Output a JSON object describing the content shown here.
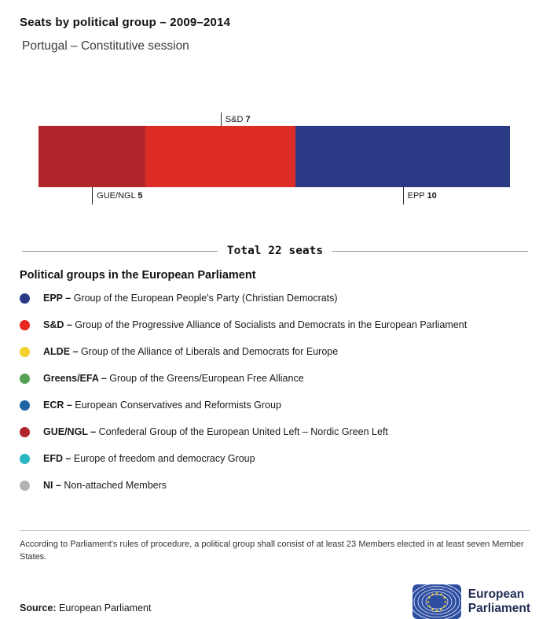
{
  "header": {
    "title": "Seats by political group – 2009–2014",
    "subtitle": "Portugal – Constitutive session"
  },
  "chart_data": {
    "type": "bar",
    "stacked": true,
    "orientation": "horizontal",
    "title": "Seats by political group – 2009–2014",
    "subtitle": "Portugal – Constitutive session",
    "total": 22,
    "total_label": "Total 22 seats",
    "categories": [
      "GUE/NGL",
      "S&D",
      "EPP"
    ],
    "values": [
      5,
      7,
      10
    ],
    "segments": [
      {
        "group": "GUE/NGL",
        "seats": 5,
        "color": "#b2242c",
        "label_position": "below"
      },
      {
        "group": "S&D",
        "seats": 7,
        "color": "#dd2b26",
        "label_position": "above"
      },
      {
        "group": "EPP",
        "seats": 10,
        "color": "#2b3a85",
        "label_position": "below"
      }
    ]
  },
  "legend": {
    "title": "Political groups in the European Parliament",
    "items": [
      {
        "abbr": "EPP",
        "name": "Group of the European People's Party (Christian Democrats)",
        "color": "#2b3a85"
      },
      {
        "abbr": "S&D",
        "name": "Group of the Progressive Alliance of Socialists and Democrats in the European Parliament",
        "color": "#e8251f"
      },
      {
        "abbr": "ALDE",
        "name": "Group of the Alliance of Liberals and Democrats for Europe",
        "color": "#f0d32f"
      },
      {
        "abbr": "Greens/EFA",
        "name": "Group of the Greens/European Free Alliance",
        "color": "#55a057"
      },
      {
        "abbr": "ECR",
        "name": "European Conservatives and Reformists Group",
        "color": "#1e64a5"
      },
      {
        "abbr": "GUE/NGL",
        "name": "Confederal Group of the European United Left – Nordic Green Left",
        "color": "#b0252b"
      },
      {
        "abbr": "EFD",
        "name": "Europe of freedom and democracy Group",
        "color": "#28b6c0"
      },
      {
        "abbr": "NI",
        "name": "Non-attached Members",
        "color": "#b2b2b2"
      }
    ]
  },
  "footnote": "According to Parliament's rules of procedure, a political group shall consist of at least 23 Members elected in at least seven Member States.",
  "source": {
    "label": "Source:",
    "text": "European Parliament"
  },
  "logo": {
    "line1": "European",
    "line2": "Parliament",
    "flag_blue": "#2c4da0",
    "star_yellow": "#ffd617"
  }
}
